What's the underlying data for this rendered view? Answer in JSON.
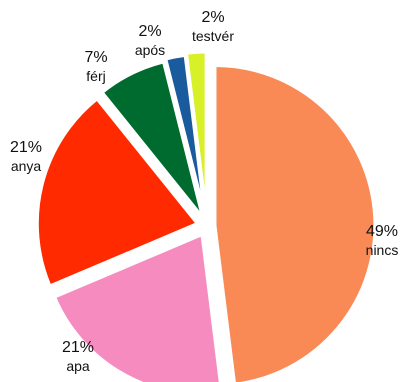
{
  "chart_data": {
    "type": "pie",
    "title": "",
    "legend": "none",
    "slices": [
      {
        "name": "nincs",
        "value": 49,
        "label": "49%",
        "color": "#f98a56"
      },
      {
        "name": "apa",
        "value": 21,
        "label": "21%",
        "color": "#f68bc0"
      },
      {
        "name": "anya",
        "value": 21,
        "label": "21%",
        "color": "#ff2a00"
      },
      {
        "name": "férj",
        "value": 7,
        "label": "7%",
        "color": "#006b2e"
      },
      {
        "name": "após",
        "value": 2,
        "label": "2%",
        "color": "#1a5b9e"
      },
      {
        "name": "testvér",
        "value": 2,
        "label": "2%",
        "color": "#d7f028"
      }
    ]
  }
}
